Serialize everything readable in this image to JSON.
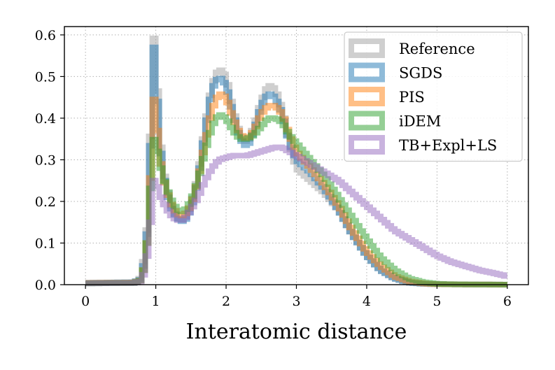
{
  "chart_data": {
    "type": "line",
    "style": "step histogram",
    "title": "",
    "xlabel": "Interatomic distance",
    "ylabel": "",
    "xlim": [
      -0.3,
      6.3
    ],
    "ylim": [
      0,
      0.62
    ],
    "xticks": [
      0,
      1,
      2,
      3,
      4,
      5,
      6
    ],
    "xtick_labels": [
      "0",
      "1",
      "2",
      "3",
      "4",
      "5",
      "6"
    ],
    "yticks": [
      0.0,
      0.1,
      0.2,
      0.3,
      0.4,
      0.5,
      0.6
    ],
    "ytick_labels": [
      "0.0",
      "0.1",
      "0.2",
      "0.3",
      "0.4",
      "0.5",
      "0.6"
    ],
    "grid": true,
    "legend_position": "top-right",
    "series": [
      {
        "name": "Reference",
        "color": "#a0a0a0",
        "points": [
          [
            0,
            0.005
          ],
          [
            0.7,
            0.006
          ],
          [
            0.78,
            0.015
          ],
          [
            0.82,
            0.05
          ],
          [
            0.86,
            0.09
          ],
          [
            0.9,
            0.2
          ],
          [
            0.94,
            0.45
          ],
          [
            0.97,
            0.6
          ],
          [
            1.0,
            0.55
          ],
          [
            1.05,
            0.38
          ],
          [
            1.1,
            0.28
          ],
          [
            1.2,
            0.2
          ],
          [
            1.3,
            0.16
          ],
          [
            1.4,
            0.155
          ],
          [
            1.5,
            0.19
          ],
          [
            1.6,
            0.26
          ],
          [
            1.7,
            0.38
          ],
          [
            1.8,
            0.48
          ],
          [
            1.9,
            0.52
          ],
          [
            2.0,
            0.5
          ],
          [
            2.1,
            0.42
          ],
          [
            2.2,
            0.36
          ],
          [
            2.3,
            0.34
          ],
          [
            2.4,
            0.38
          ],
          [
            2.5,
            0.44
          ],
          [
            2.6,
            0.48
          ],
          [
            2.7,
            0.47
          ],
          [
            2.8,
            0.42
          ],
          [
            2.9,
            0.34
          ],
          [
            3.0,
            0.28
          ],
          [
            3.2,
            0.25
          ],
          [
            3.4,
            0.22
          ],
          [
            3.6,
            0.18
          ],
          [
            3.8,
            0.12
          ],
          [
            4.0,
            0.07
          ],
          [
            4.2,
            0.035
          ],
          [
            4.4,
            0.015
          ],
          [
            4.6,
            0.005
          ],
          [
            4.8,
            0.002
          ],
          [
            5.0,
            0.001
          ],
          [
            6.0,
            0.0
          ]
        ]
      },
      {
        "name": "SGDS",
        "color": "#1f77b4",
        "points": [
          [
            0,
            0.004
          ],
          [
            0.7,
            0.006
          ],
          [
            0.78,
            0.012
          ],
          [
            0.82,
            0.04
          ],
          [
            0.86,
            0.08
          ],
          [
            0.9,
            0.19
          ],
          [
            0.94,
            0.42
          ],
          [
            0.97,
            0.58
          ],
          [
            1.0,
            0.52
          ],
          [
            1.05,
            0.36
          ],
          [
            1.1,
            0.27
          ],
          [
            1.2,
            0.19
          ],
          [
            1.3,
            0.16
          ],
          [
            1.4,
            0.15
          ],
          [
            1.5,
            0.18
          ],
          [
            1.6,
            0.25
          ],
          [
            1.7,
            0.37
          ],
          [
            1.8,
            0.47
          ],
          [
            1.9,
            0.5
          ],
          [
            2.0,
            0.48
          ],
          [
            2.1,
            0.41
          ],
          [
            2.2,
            0.35
          ],
          [
            2.3,
            0.33
          ],
          [
            2.4,
            0.37
          ],
          [
            2.5,
            0.43
          ],
          [
            2.6,
            0.46
          ],
          [
            2.7,
            0.45
          ],
          [
            2.8,
            0.41
          ],
          [
            2.9,
            0.34
          ],
          [
            3.0,
            0.3
          ],
          [
            3.2,
            0.27
          ],
          [
            3.4,
            0.23
          ],
          [
            3.6,
            0.18
          ],
          [
            3.8,
            0.12
          ],
          [
            4.0,
            0.07
          ],
          [
            4.2,
            0.035
          ],
          [
            4.4,
            0.015
          ],
          [
            4.6,
            0.005
          ],
          [
            4.8,
            0.002
          ],
          [
            5.0,
            0.001
          ],
          [
            6.0,
            0.0
          ]
        ]
      },
      {
        "name": "PIS",
        "color": "#ff7f0e",
        "points": [
          [
            0,
            0.004
          ],
          [
            0.7,
            0.005
          ],
          [
            0.78,
            0.01
          ],
          [
            0.82,
            0.03
          ],
          [
            0.86,
            0.07
          ],
          [
            0.9,
            0.15
          ],
          [
            0.94,
            0.32
          ],
          [
            0.97,
            0.45
          ],
          [
            1.0,
            0.42
          ],
          [
            1.05,
            0.32
          ],
          [
            1.1,
            0.26
          ],
          [
            1.2,
            0.2
          ],
          [
            1.3,
            0.17
          ],
          [
            1.4,
            0.165
          ],
          [
            1.5,
            0.19
          ],
          [
            1.6,
            0.25
          ],
          [
            1.7,
            0.34
          ],
          [
            1.8,
            0.42
          ],
          [
            1.9,
            0.46
          ],
          [
            2.0,
            0.45
          ],
          [
            2.1,
            0.4
          ],
          [
            2.2,
            0.36
          ],
          [
            2.3,
            0.35
          ],
          [
            2.4,
            0.37
          ],
          [
            2.5,
            0.41
          ],
          [
            2.6,
            0.43
          ],
          [
            2.7,
            0.43
          ],
          [
            2.8,
            0.41
          ],
          [
            2.9,
            0.36
          ],
          [
            3.0,
            0.32
          ],
          [
            3.2,
            0.28
          ],
          [
            3.4,
            0.24
          ],
          [
            3.6,
            0.19
          ],
          [
            3.8,
            0.13
          ],
          [
            4.0,
            0.08
          ],
          [
            4.2,
            0.045
          ],
          [
            4.4,
            0.02
          ],
          [
            4.6,
            0.008
          ],
          [
            4.8,
            0.003
          ],
          [
            5.0,
            0.001
          ],
          [
            6.0,
            0.0
          ]
        ]
      },
      {
        "name": "iDEM",
        "color": "#2ca02c",
        "points": [
          [
            0,
            0.003
          ],
          [
            0.7,
            0.004
          ],
          [
            0.78,
            0.01
          ],
          [
            0.82,
            0.03
          ],
          [
            0.86,
            0.07
          ],
          [
            0.9,
            0.15
          ],
          [
            0.94,
            0.28
          ],
          [
            0.97,
            0.35
          ],
          [
            1.0,
            0.34
          ],
          [
            1.05,
            0.3
          ],
          [
            1.1,
            0.26
          ],
          [
            1.2,
            0.21
          ],
          [
            1.3,
            0.18
          ],
          [
            1.4,
            0.175
          ],
          [
            1.5,
            0.2
          ],
          [
            1.6,
            0.25
          ],
          [
            1.7,
            0.32
          ],
          [
            1.8,
            0.38
          ],
          [
            1.9,
            0.41
          ],
          [
            2.0,
            0.4
          ],
          [
            2.1,
            0.37
          ],
          [
            2.2,
            0.35
          ],
          [
            2.3,
            0.35
          ],
          [
            2.4,
            0.36
          ],
          [
            2.5,
            0.38
          ],
          [
            2.6,
            0.4
          ],
          [
            2.7,
            0.4
          ],
          [
            2.8,
            0.39
          ],
          [
            2.9,
            0.36
          ],
          [
            3.0,
            0.34
          ],
          [
            3.2,
            0.3
          ],
          [
            3.4,
            0.26
          ],
          [
            3.6,
            0.21
          ],
          [
            3.8,
            0.16
          ],
          [
            4.0,
            0.11
          ],
          [
            4.2,
            0.065
          ],
          [
            4.4,
            0.035
          ],
          [
            4.6,
            0.015
          ],
          [
            4.8,
            0.006
          ],
          [
            5.0,
            0.002
          ],
          [
            5.2,
            0.001
          ],
          [
            6.0,
            0.0
          ]
        ]
      },
      {
        "name": "TB+Expl+LS",
        "color": "#9467bd",
        "points": [
          [
            0,
            0.003
          ],
          [
            0.7,
            0.004
          ],
          [
            0.78,
            0.008
          ],
          [
            0.82,
            0.02
          ],
          [
            0.86,
            0.05
          ],
          [
            0.9,
            0.1
          ],
          [
            0.94,
            0.18
          ],
          [
            0.97,
            0.25
          ],
          [
            1.0,
            0.25
          ],
          [
            1.05,
            0.22
          ],
          [
            1.1,
            0.2
          ],
          [
            1.2,
            0.17
          ],
          [
            1.3,
            0.155
          ],
          [
            1.4,
            0.155
          ],
          [
            1.5,
            0.18
          ],
          [
            1.6,
            0.21
          ],
          [
            1.7,
            0.25
          ],
          [
            1.8,
            0.28
          ],
          [
            1.9,
            0.3
          ],
          [
            2.0,
            0.305
          ],
          [
            2.1,
            0.31
          ],
          [
            2.2,
            0.31
          ],
          [
            2.3,
            0.31
          ],
          [
            2.4,
            0.315
          ],
          [
            2.5,
            0.32
          ],
          [
            2.6,
            0.325
          ],
          [
            2.7,
            0.33
          ],
          [
            2.8,
            0.33
          ],
          [
            2.9,
            0.32
          ],
          [
            3.0,
            0.31
          ],
          [
            3.2,
            0.29
          ],
          [
            3.4,
            0.27
          ],
          [
            3.6,
            0.25
          ],
          [
            3.8,
            0.22
          ],
          [
            4.0,
            0.19
          ],
          [
            4.2,
            0.16
          ],
          [
            4.4,
            0.13
          ],
          [
            4.6,
            0.11
          ],
          [
            4.8,
            0.09
          ],
          [
            5.0,
            0.07
          ],
          [
            5.2,
            0.055
          ],
          [
            5.4,
            0.045
          ],
          [
            5.6,
            0.035
          ],
          [
            5.8,
            0.028
          ],
          [
            6.0,
            0.02
          ]
        ]
      }
    ]
  }
}
